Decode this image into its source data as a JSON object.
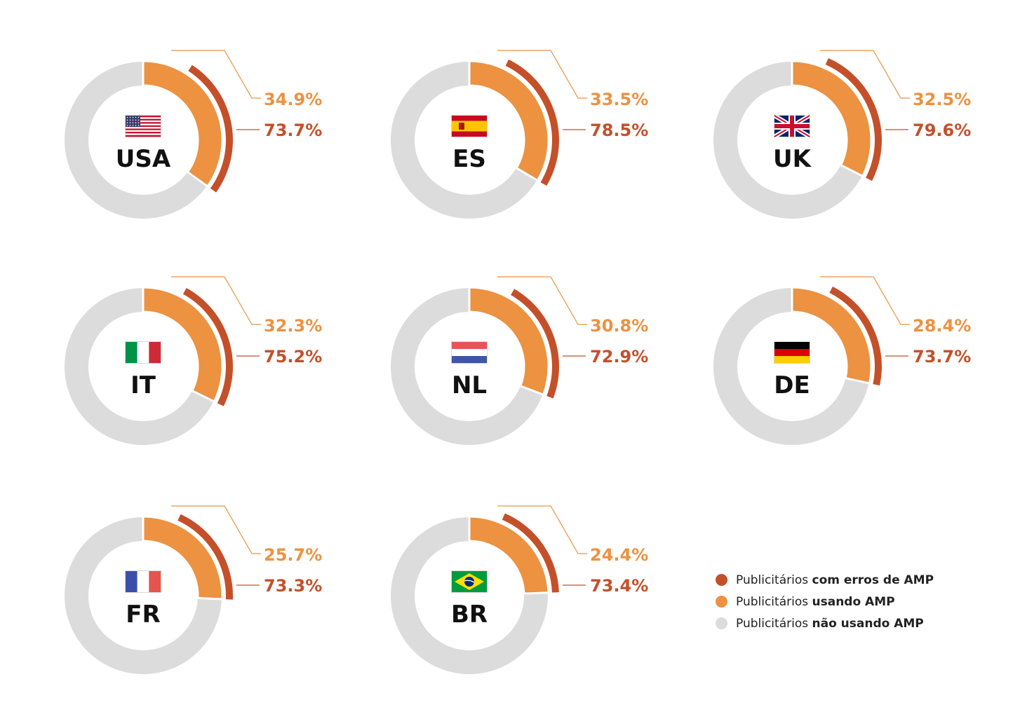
{
  "chart_data": {
    "type": "pie",
    "variant": "donut-small-multiples",
    "title": "",
    "series_colors": {
      "errors": "#c4502a",
      "using": "#ec9241",
      "not_using": "#dcdcdc"
    },
    "charts": [
      {
        "country": "USA",
        "flag": "us-flag-icon",
        "using_pct": 34.9,
        "errors_pct": 73.7,
        "using_label": "34.9%",
        "errors_label": "73.7%"
      },
      {
        "country": "ES",
        "flag": "es-flag-icon",
        "using_pct": 33.5,
        "errors_pct": 78.5,
        "using_label": "33.5%",
        "errors_label": "78.5%"
      },
      {
        "country": "UK",
        "flag": "uk-flag-icon",
        "using_pct": 32.5,
        "errors_pct": 79.6,
        "using_label": "32.5%",
        "errors_label": "79.6%"
      },
      {
        "country": "IT",
        "flag": "it-flag-icon",
        "using_pct": 32.3,
        "errors_pct": 75.2,
        "using_label": "32.3%",
        "errors_label": "75.2%"
      },
      {
        "country": "NL",
        "flag": "nl-flag-icon",
        "using_pct": 30.8,
        "errors_pct": 72.9,
        "using_label": "30.8%",
        "errors_label": "72.9%"
      },
      {
        "country": "DE",
        "flag": "de-flag-icon",
        "using_pct": 28.4,
        "errors_pct": 73.7,
        "using_label": "28.4%",
        "errors_label": "73.7%"
      },
      {
        "country": "FR",
        "flag": "fr-flag-icon",
        "using_pct": 25.7,
        "errors_pct": 73.3,
        "using_label": "25.7%",
        "errors_label": "73.3%"
      },
      {
        "country": "BR",
        "flag": "br-flag-icon",
        "using_pct": 24.4,
        "errors_pct": 73.4,
        "using_label": "24.4%",
        "errors_label": "73.4%"
      }
    ],
    "legend": [
      {
        "key": "errors",
        "prefix": "Publicitários ",
        "bold": "com erros de AMP"
      },
      {
        "key": "using",
        "prefix": "Publicitários ",
        "bold": "usando AMP"
      },
      {
        "key": "not_using",
        "prefix": "Publicitários ",
        "bold": "não usando AMP"
      }
    ],
    "legend_placement": "bottom-right"
  }
}
